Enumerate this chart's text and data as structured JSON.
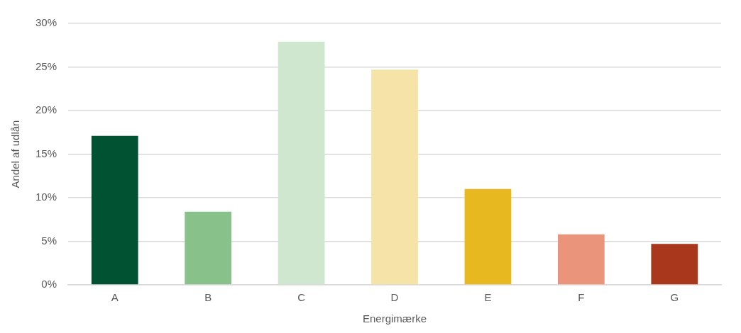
{
  "chart_data": {
    "type": "bar",
    "xlabel": "Energimærke",
    "ylabel": "Andel af udlån",
    "categories": [
      "A",
      "B",
      "C",
      "D",
      "E",
      "F",
      "G"
    ],
    "values": [
      17.1,
      8.4,
      27.9,
      24.7,
      11.0,
      5.8,
      4.7
    ],
    "colors": [
      "#005233",
      "#88c28a",
      "#cfe6cf",
      "#f5e3a8",
      "#e8b820",
      "#eb947c",
      "#a8371b"
    ],
    "ylim": [
      0,
      30
    ],
    "yticks": [
      {
        "value": 0,
        "label": "0%"
      },
      {
        "value": 5,
        "label": "5%"
      },
      {
        "value": 10,
        "label": "10%"
      },
      {
        "value": 15,
        "label": "15%"
      },
      {
        "value": 20,
        "label": "20%"
      },
      {
        "value": 25,
        "label": "25%"
      },
      {
        "value": 30,
        "label": "30%"
      }
    ],
    "grid": "y",
    "legend": false
  }
}
